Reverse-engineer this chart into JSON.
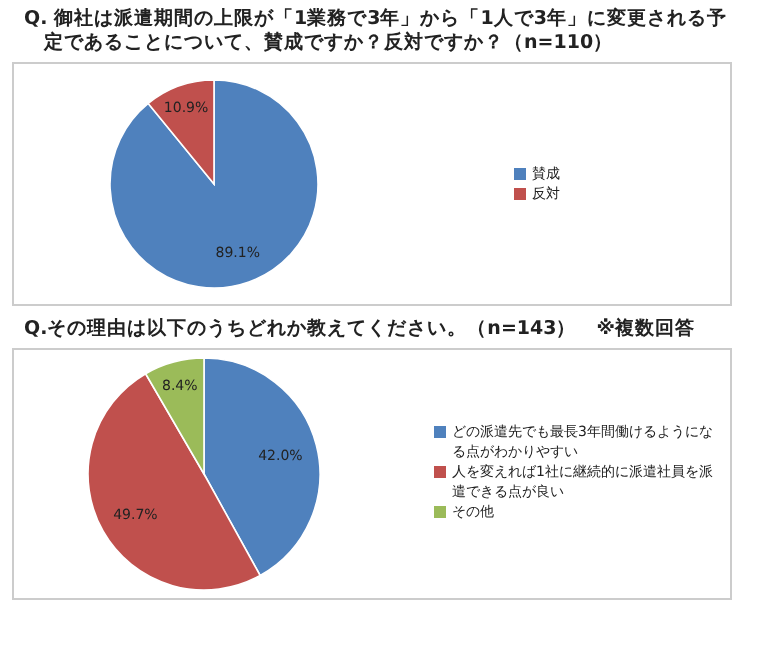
{
  "chart_data": [
    {
      "type": "pie",
      "title": "Q. 御社は派遣期間の上限が「1業務で3年」から「1人で3年」に変更される予定であることについて、賛成ですか？反対ですか？（n=110）",
      "categories": [
        "賛成",
        "反対"
      ],
      "values": [
        89.1,
        10.9
      ],
      "colors": [
        "#4f81bd",
        "#c0504d"
      ],
      "value_labels": [
        "89.1%",
        "10.9%"
      ],
      "legend": "right"
    },
    {
      "type": "pie",
      "title": "Q.その理由は以下のうちどれか教えてください。（n=143）　※複数回答",
      "categories": [
        "どの派遣先でも最長3年間働けるようになる点がわかりやすい",
        "人を変えれば1社に継続的に派遣社員を派遣できる点が良い",
        "その他"
      ],
      "values": [
        42.0,
        49.7,
        8.4
      ],
      "colors": [
        "#4f81bd",
        "#c0504d",
        "#9bbb59"
      ],
      "value_labels": [
        "42.0%",
        "49.7%",
        "8.4%"
      ],
      "legend": "right"
    }
  ]
}
